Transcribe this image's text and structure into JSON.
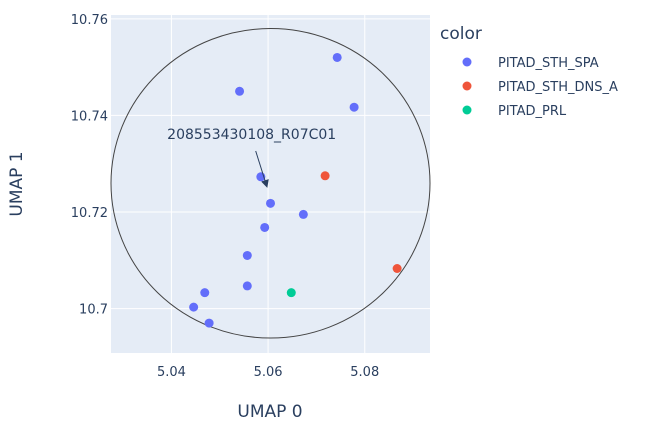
{
  "chart_data": {
    "type": "scatter",
    "xlabel": "UMAP 0",
    "ylabel": "UMAP 1",
    "xlim": [
      5.0275,
      5.0935
    ],
    "ylim": [
      10.6908,
      10.7608
    ],
    "x_ticks": [
      {
        "value": 5.04,
        "label": "5.04"
      },
      {
        "value": 5.06,
        "label": "5.06"
      },
      {
        "value": 5.08,
        "label": "5.08"
      }
    ],
    "y_ticks": [
      {
        "value": 10.7,
        "label": "10.7"
      },
      {
        "value": 10.72,
        "label": "10.72"
      },
      {
        "value": 10.74,
        "label": "10.74"
      },
      {
        "value": 10.76,
        "label": "10.76"
      }
    ],
    "grid": true,
    "legend": {
      "title": "color",
      "placement": "right",
      "items": [
        {
          "label": "PITAD_STH_SPA",
          "color": "#636efa"
        },
        {
          "label": "PITAD_STH_DNS_A",
          "color": "#ef553b"
        },
        {
          "label": "PITAD_PRL",
          "color": "#00cc96"
        }
      ]
    },
    "series": [
      {
        "name": "PITAD_STH_SPA",
        "color": "#636efa",
        "points": [
          {
            "x": 5.0743,
            "y": 10.752
          },
          {
            "x": 5.0541,
            "y": 10.745
          },
          {
            "x": 5.0778,
            "y": 10.7417
          },
          {
            "x": 5.0585,
            "y": 10.7273
          },
          {
            "x": 5.0605,
            "y": 10.7218
          },
          {
            "x": 5.0673,
            "y": 10.7195
          },
          {
            "x": 5.0593,
            "y": 10.7168
          },
          {
            "x": 5.0557,
            "y": 10.711
          },
          {
            "x": 5.0557,
            "y": 10.7047
          },
          {
            "x": 5.0469,
            "y": 10.7033
          },
          {
            "x": 5.0446,
            "y": 10.7003
          },
          {
            "x": 5.0478,
            "y": 10.697
          }
        ]
      },
      {
        "name": "PITAD_STH_DNS_A",
        "color": "#ef553b",
        "points": [
          {
            "x": 5.0718,
            "y": 10.7275
          },
          {
            "x": 5.0867,
            "y": 10.7083
          }
        ]
      },
      {
        "name": "PITAD_PRL",
        "color": "#00cc96",
        "points": [
          {
            "x": 5.0648,
            "y": 10.7033
          }
        ]
      }
    ],
    "annotations": [
      {
        "text": "208553430108_R07C01",
        "x": 5.0593,
        "y": 10.7258
      }
    ],
    "shapes": [
      {
        "type": "circle",
        "x0": 5.0275,
        "x1": 5.0935,
        "y0": 10.6939,
        "y1": 10.758,
        "color": "#444444"
      }
    ]
  }
}
